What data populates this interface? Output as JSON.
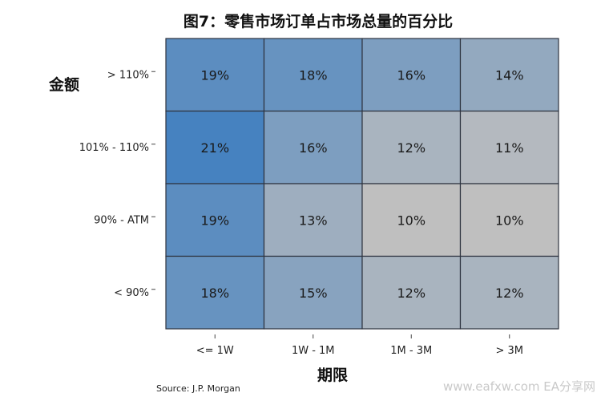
{
  "chart_data": {
    "type": "heatmap",
    "title": "图7：零售市场订单占市场总量的百分比",
    "xlabel": "期限",
    "ylabel": "金额",
    "x_categories": [
      "<= 1W",
      "1W - 1M",
      "1M - 3M",
      "> 3M"
    ],
    "y_categories": [
      "> 110%",
      "101% - 110%",
      "90% - ATM",
      "< 90%"
    ],
    "values": [
      [
        19,
        18,
        16,
        14
      ],
      [
        21,
        16,
        12,
        11
      ],
      [
        19,
        13,
        10,
        10
      ],
      [
        18,
        15,
        12,
        12
      ]
    ],
    "value_suffix": "%",
    "color_low": "#bfbfbf",
    "color_high": "#4682c0",
    "grid": true,
    "legend": "none"
  },
  "source": "Source: J.P. Morgan",
  "watermark": "www.eafxw.com   EA分享网"
}
